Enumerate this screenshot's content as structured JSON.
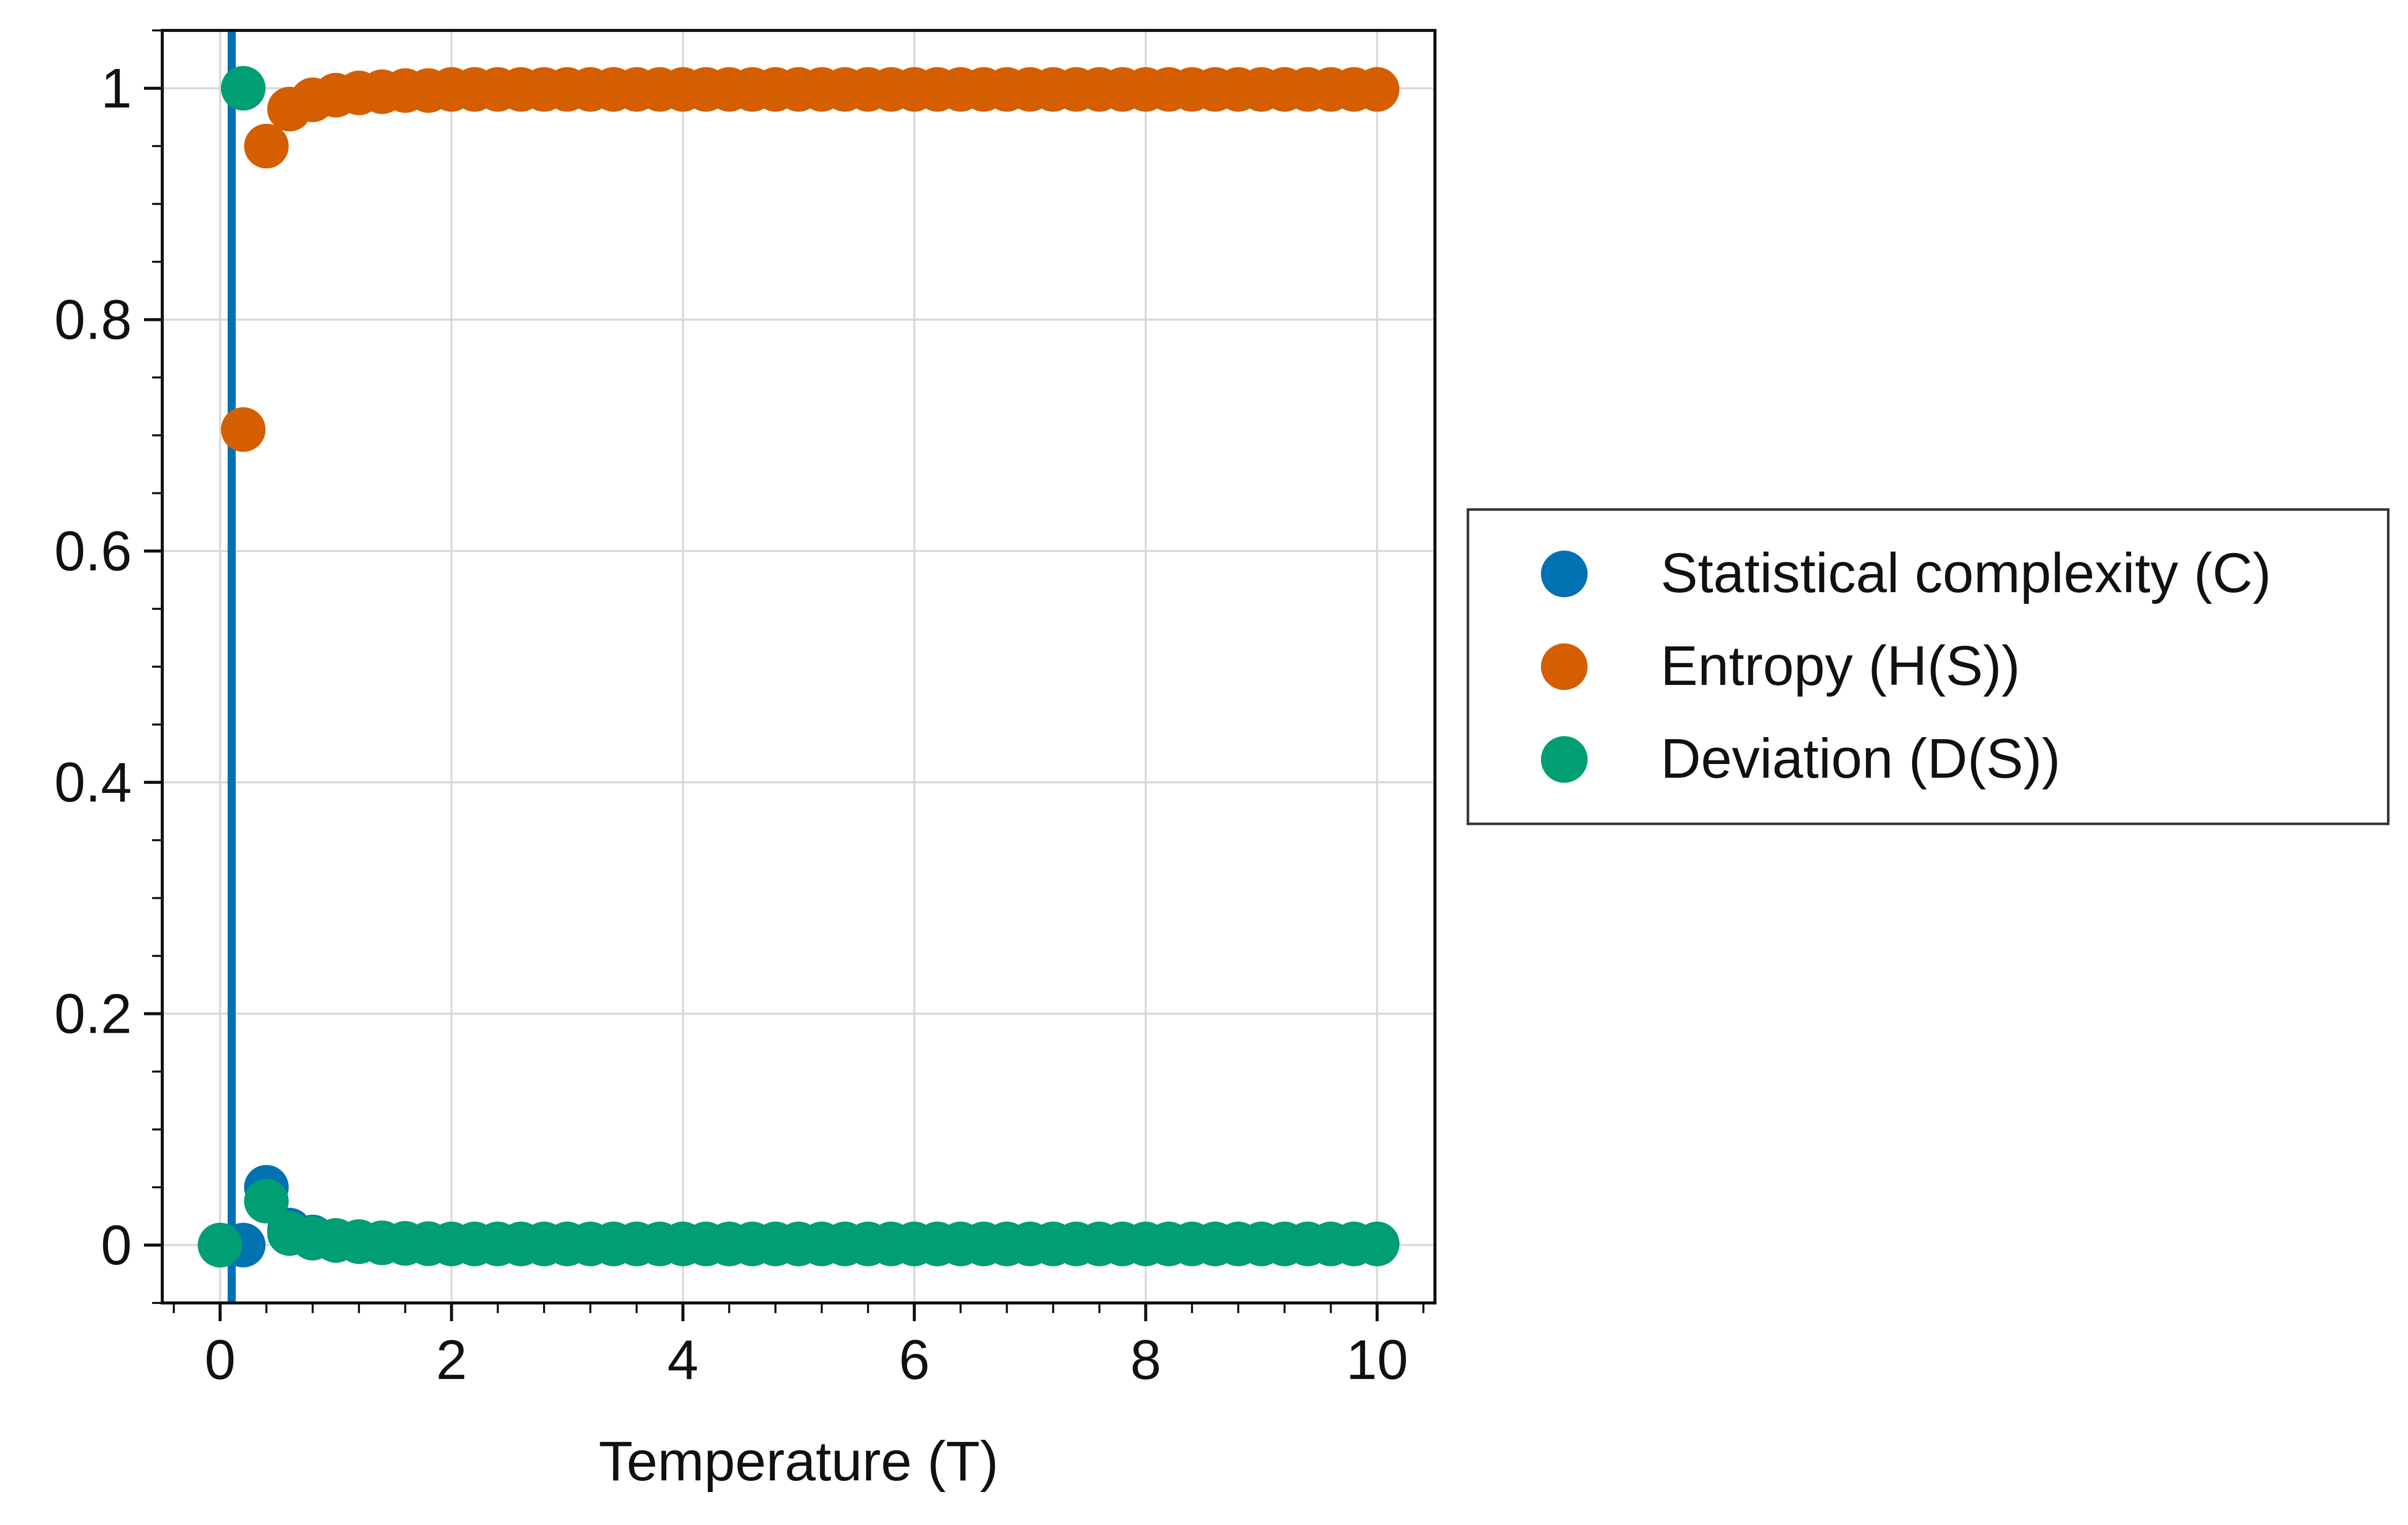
{
  "chart_data": {
    "type": "scatter",
    "title": "",
    "xlabel": "Temperature (T)",
    "ylabel": "",
    "xlim": [
      -0.5,
      10.5
    ],
    "ylim": [
      -0.05,
      1.05
    ],
    "grid": true,
    "x_ticks": [
      0,
      2,
      4,
      6,
      8,
      10
    ],
    "x_tick_labels": [
      "0",
      "2",
      "4",
      "6",
      "8",
      "10"
    ],
    "y_ticks": [
      0,
      0.2,
      0.4,
      0.6,
      0.8,
      1
    ],
    "y_tick_labels": [
      "0",
      "0.2",
      "0.4",
      "0.6",
      "0.8",
      "1"
    ],
    "vertical_line": {
      "x": 0.1,
      "color": "#0072B2"
    },
    "legend_position": "outside-right",
    "x": [
      0.0,
      0.2,
      0.4,
      0.6,
      0.8,
      1.0,
      1.2,
      1.4,
      1.6,
      1.8,
      2.0,
      2.2,
      2.4,
      2.6,
      2.8,
      3.0,
      3.2,
      3.4,
      3.6,
      3.8,
      4.0,
      4.2,
      4.4,
      4.6,
      4.8,
      5.0,
      5.2,
      5.4,
      5.6,
      5.8,
      6.0,
      6.2,
      6.4,
      6.6,
      6.8,
      7.0,
      7.2,
      7.4,
      7.6,
      7.8,
      8.0,
      8.2,
      8.4,
      8.6,
      8.8,
      9.0,
      9.2,
      9.4,
      9.6,
      9.8,
      10.0
    ],
    "series": [
      {
        "name": "Statistical complexity (C)",
        "color": "#0072B2",
        "values": [
          0,
          0,
          0.05,
          0.013,
          0.007,
          0.004,
          0.003,
          0.002,
          0.0015,
          0.0012,
          0.001,
          0.001,
          0.001,
          0.001,
          0.001,
          0.001,
          0.001,
          0.001,
          0.001,
          0.001,
          0.001,
          0.001,
          0.001,
          0.001,
          0.001,
          0.001,
          0.001,
          0.001,
          0.001,
          0.001,
          0.001,
          0.001,
          0.001,
          0.001,
          0.001,
          0.001,
          0.001,
          0.001,
          0.001,
          0.001,
          0.001,
          0.001,
          0.001,
          0.001,
          0.001,
          0.001,
          0.001,
          0.001,
          0.001,
          0.001,
          0.001
        ]
      },
      {
        "name": "Entropy (H(S))",
        "color": "#D55E00",
        "values": [
          null,
          0.705,
          0.95,
          0.982,
          0.99,
          0.994,
          0.996,
          0.997,
          0.998,
          0.998,
          0.999,
          0.999,
          0.999,
          0.999,
          0.999,
          0.999,
          0.999,
          0.999,
          0.999,
          0.999,
          0.999,
          0.999,
          0.999,
          0.999,
          0.999,
          0.999,
          0.999,
          0.999,
          0.999,
          0.999,
          0.999,
          0.999,
          0.999,
          0.999,
          0.999,
          0.999,
          0.999,
          0.999,
          0.999,
          0.999,
          0.999,
          0.999,
          0.999,
          0.999,
          0.999,
          0.999,
          0.999,
          0.999,
          0.999,
          0.999,
          0.999
        ]
      },
      {
        "name": "Deviation (D(S))",
        "color": "#009E73",
        "values": [
          0,
          1.0,
          0.038,
          0.01,
          0.006,
          0.004,
          0.003,
          0.002,
          0.0015,
          0.0012,
          0.001,
          0.001,
          0.001,
          0.001,
          0.001,
          0.001,
          0.001,
          0.001,
          0.001,
          0.001,
          0.001,
          0.001,
          0.001,
          0.001,
          0.001,
          0.001,
          0.001,
          0.001,
          0.001,
          0.001,
          0.001,
          0.001,
          0.001,
          0.001,
          0.001,
          0.001,
          0.001,
          0.001,
          0.001,
          0.001,
          0.001,
          0.001,
          0.001,
          0.001,
          0.001,
          0.001,
          0.001,
          0.001,
          0.001,
          0.001,
          0.001
        ]
      }
    ]
  }
}
